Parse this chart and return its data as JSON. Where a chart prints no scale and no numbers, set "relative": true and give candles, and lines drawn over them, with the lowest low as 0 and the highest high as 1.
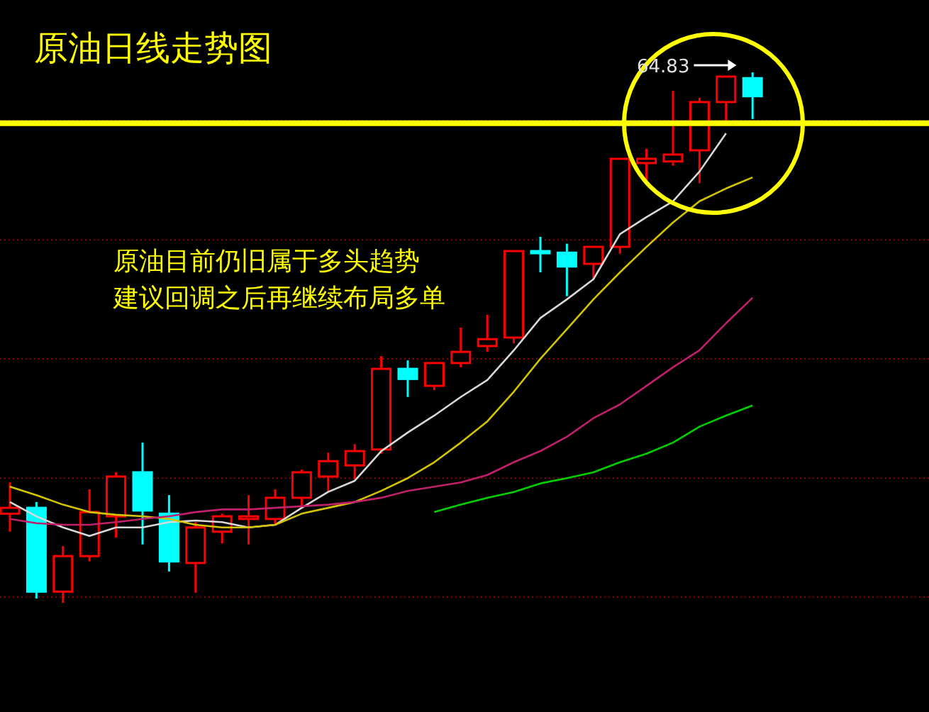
{
  "chart_data": {
    "type": "candlestick",
    "title": "原油日线走势图",
    "relative": true,
    "categories": [
      null,
      null,
      null,
      null,
      null,
      null,
      null,
      null,
      null,
      null,
      null,
      null,
      null,
      null,
      null,
      null,
      null,
      null,
      null,
      null,
      null,
      null,
      null,
      null,
      null,
      null,
      null,
      null,
      null
    ],
    "ohlc": [
      [
        0.168,
        0.227,
        0.134,
        0.179
      ],
      [
        0.179,
        0.19,
        0.008,
        0.021
      ],
      [
        0.021,
        0.107,
        0,
        0.088
      ],
      [
        0.088,
        0.214,
        0.078,
        0.171
      ],
      [
        0.163,
        0.246,
        0.123,
        0.238
      ],
      [
        0.246,
        0.302,
        0.11,
        0.174
      ],
      [
        0.168,
        0.203,
        0.059,
        0.078
      ],
      [
        0.075,
        0.152,
        0.019,
        0.142
      ],
      [
        0.134,
        0.168,
        0.112,
        0.163
      ],
      [
        0.158,
        0.203,
        0.11,
        0.163
      ],
      [
        0.158,
        0.214,
        0.147,
        0.198
      ],
      [
        0.198,
        0.251,
        0.179,
        0.246
      ],
      [
        0.238,
        0.283,
        0.209,
        0.267
      ],
      [
        0.259,
        0.299,
        0.233,
        0.286
      ],
      [
        0.289,
        0.465,
        0.281,
        0.441
      ],
      [
        0.441,
        0.457,
        0.388,
        0.422
      ],
      [
        0.409,
        0.452,
        0.401,
        0.452
      ],
      [
        0.452,
        0.519,
        0.444,
        0.473
      ],
      [
        0.484,
        0.543,
        0.473,
        0.497
      ],
      [
        0.5,
        0.663,
        0.489,
        0.663
      ],
      [
        0.663,
        0.69,
        0.623,
        0.66
      ],
      [
        0.66,
        0.677,
        0.578,
        0.634
      ],
      [
        0.639,
        0.671,
        0.61,
        0.671
      ],
      [
        0.671,
        0.837,
        0.658,
        0.837
      ],
      [
        0.829,
        0.856,
        0.789,
        0.837
      ],
      [
        0.832,
        0.965,
        0.824,
        0.845
      ],
      [
        0.853,
        0.952,
        0.791,
        0.944
      ],
      [
        0.944,
        0.992,
        0.906,
        0.992
      ],
      [
        0.989,
        1,
        0.912,
        0.955
      ]
    ],
    "colors": [
      "#ff0000",
      "#00ffff",
      "#ff0000",
      "#ff0000",
      "#ff0000",
      "#00ffff",
      "#00ffff",
      "#ff0000",
      "#ff0000",
      "#ff0000",
      "#ff0000",
      "#ff0000",
      "#ff0000",
      "#ff0000",
      "#ff0000",
      "#00ffff",
      "#ff0000",
      "#ff0000",
      "#ff0000",
      "#ff0000",
      "#00ffff",
      "#00ffff",
      "#ff0000",
      "#ff0000",
      "#ff0000",
      "#ff0000",
      "#ff0000",
      "#ff0000",
      "#00ffff"
    ],
    "series": [
      {
        "type": "line",
        "color": "#d8d8d8",
        "values": [
          0.19,
          0.163,
          0.142,
          0.126,
          0.142,
          0.142,
          0.152,
          0.155,
          0.152,
          0.142,
          0.147,
          0.179,
          0.209,
          0.23,
          0.286,
          0.321,
          0.353,
          0.388,
          0.42,
          0.476,
          0.537,
          0.572,
          0.61,
          0.695,
          0.727,
          0.757,
          0.813,
          0.885,
          null
        ]
      },
      {
        "type": "line",
        "color": "#d4c400",
        "values": [
          0.219,
          0.203,
          0.185,
          0.171,
          0.166,
          0.163,
          0.158,
          0.147,
          0.142,
          0.142,
          0.147,
          0.168,
          0.179,
          0.19,
          0.211,
          0.235,
          0.265,
          0.302,
          0.342,
          0.398,
          0.46,
          0.516,
          0.572,
          0.623,
          0.671,
          0.717,
          0.757,
          0.781,
          0.802
        ]
      },
      {
        "type": "line",
        "color": "#c0206a",
        "values": [
          0.158,
          0.15,
          0.147,
          0.147,
          0.152,
          0.158,
          0.163,
          0.171,
          0.176,
          0.176,
          0.179,
          0.182,
          0.185,
          0.19,
          0.198,
          0.211,
          0.219,
          0.227,
          0.241,
          0.265,
          0.286,
          0.313,
          0.348,
          0.374,
          0.409,
          0.444,
          0.476,
          0.527,
          0.575
        ]
      },
      {
        "type": "line",
        "color": "#00d000",
        "values": [
          null,
          null,
          null,
          null,
          null,
          null,
          null,
          null,
          null,
          null,
          null,
          null,
          null,
          null,
          null,
          null,
          0.171,
          0.185,
          0.198,
          0.209,
          0.225,
          0.235,
          0.246,
          0.265,
          0.281,
          0.302,
          0.332,
          0.353,
          0.372
        ]
      }
    ],
    "ref_lines": [
      {
        "axis": "y",
        "value": 0.904,
        "color": "#ffff00"
      },
      {
        "axis": "y",
        "value": 0.909,
        "color": "#8b0000",
        "line_style": "dotted"
      },
      {
        "axis": "y",
        "value": 0.684,
        "color": "#8b0000",
        "line_style": "dotted"
      },
      {
        "axis": "y",
        "value": 0.46,
        "color": "#8b0000",
        "line_style": "dotted"
      },
      {
        "axis": "y",
        "value": 0.235,
        "color": "#8b0000",
        "line_style": "dotted"
      },
      {
        "axis": "y",
        "value": 0.011,
        "color": "#8b0000",
        "line_style": "dotted"
      }
    ],
    "annotations": [
      "64.83",
      "原油目前仍旧属于多头趋势",
      "建议回调之后再继续布局多单"
    ]
  }
}
